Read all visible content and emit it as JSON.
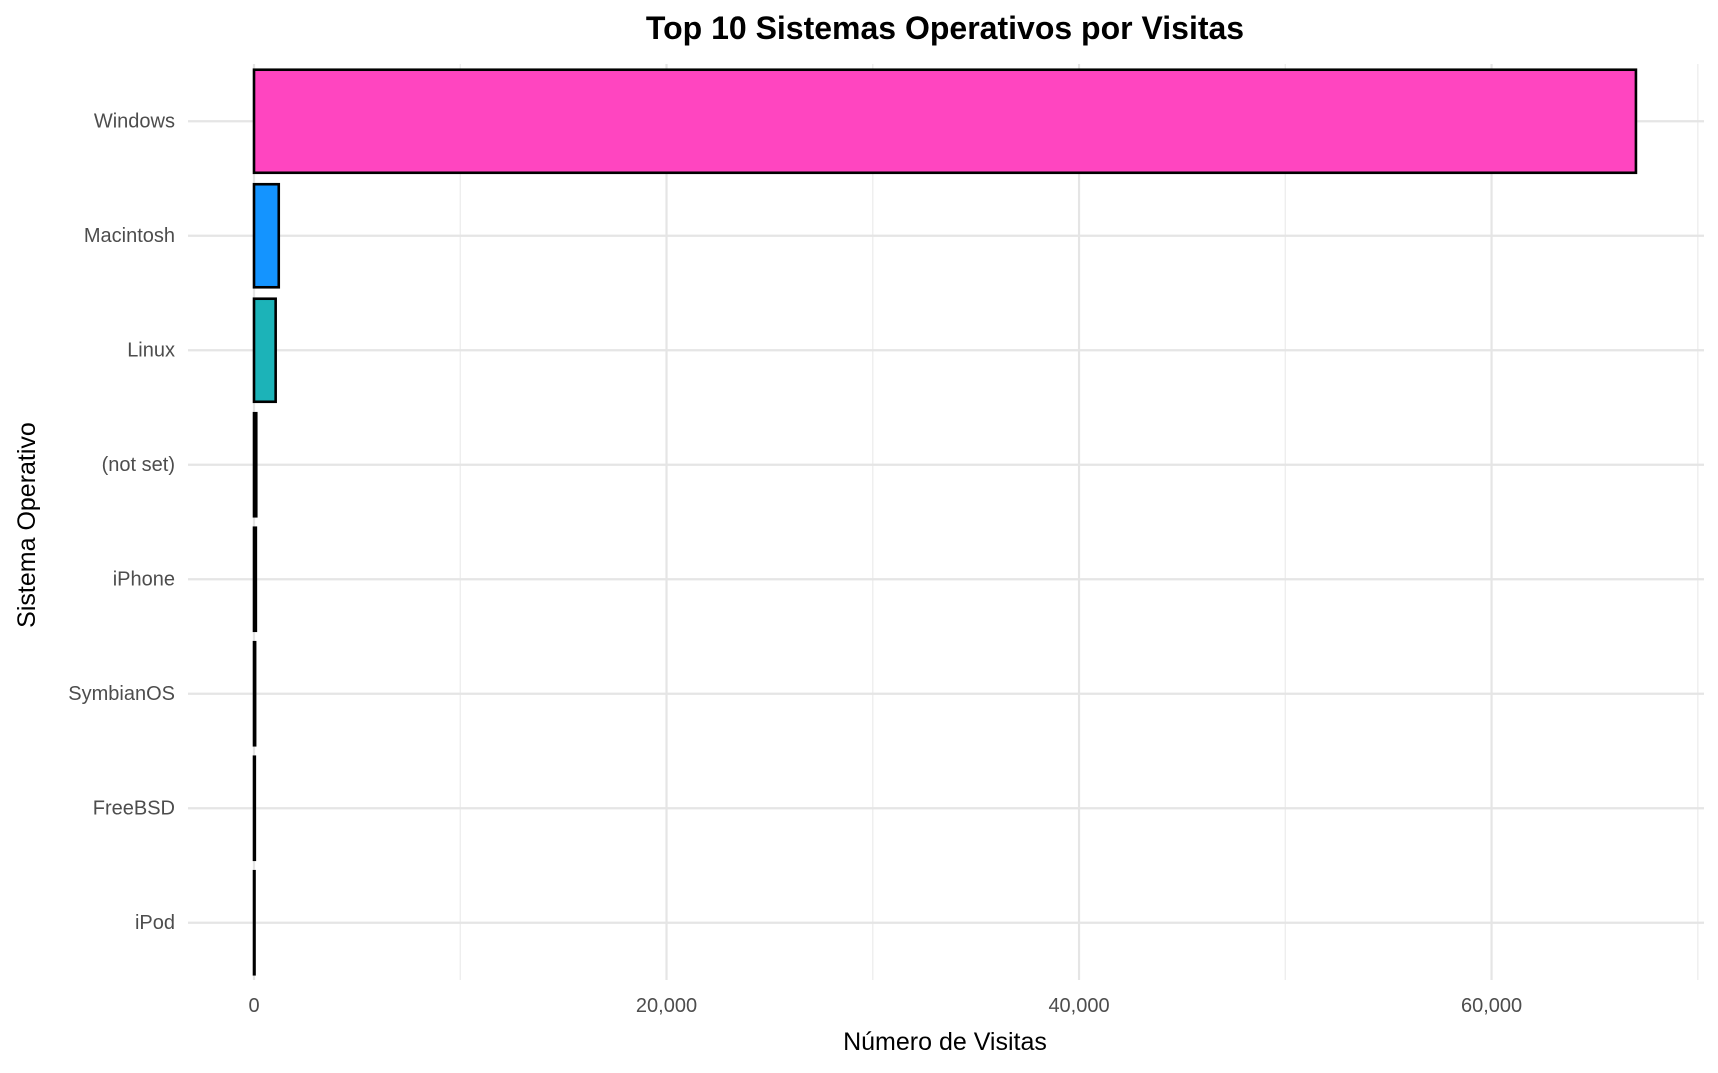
{
  "chart_data": {
    "type": "bar",
    "orientation": "horizontal",
    "title": "Top 10 Sistemas Operativos por Visitas",
    "xlabel": "Número de Visitas",
    "ylabel": "Sistema Operativo",
    "categories": [
      "Windows",
      "Macintosh",
      "Linux",
      "(not set)",
      "iPhone",
      "SymbianOS",
      "FreeBSD",
      "iPod"
    ],
    "values": [
      67000,
      1200,
      1050,
      110,
      90,
      55,
      40,
      25
    ],
    "colors": [
      "#FF45C0",
      "#1494FF",
      "#1CB3B8",
      "#8E8E8E",
      "#D7A21C",
      "#5BA11C",
      "#B07AFF",
      "#F8766D"
    ],
    "xlim": [
      -3200,
      70300
    ],
    "x_ticks": [
      0,
      20000,
      40000,
      60000
    ],
    "x_tick_labels": [
      "0",
      "20,000",
      "40,000",
      "60,000"
    ],
    "grid": true,
    "legend": "none"
  }
}
